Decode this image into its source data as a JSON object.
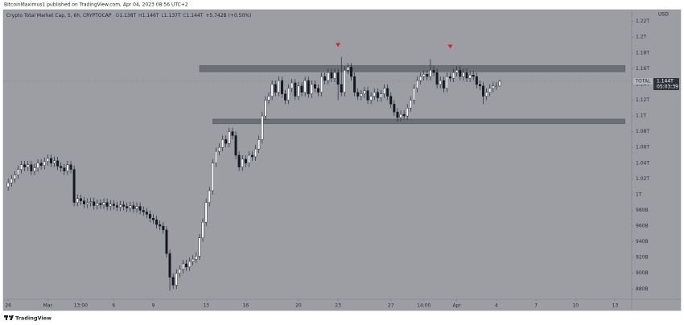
{
  "header": {
    "published": "BitcoinMaximus1 published on TradingView.com, Apr 04, 2023 08:56 UTC+2"
  },
  "footer": {
    "brand": "TradingView"
  },
  "chart_data": {
    "type": "candlestick",
    "title": "Crypto Total Market Cap, 5, 6h, CRYPTOCAP",
    "ohlc_legend": [
      {
        "key": "O",
        "value": "1.138T"
      },
      {
        "key": "H",
        "value": "1.146T"
      },
      {
        "key": "L",
        "value": "1.137T"
      },
      {
        "key": "C",
        "value": "1.144T"
      }
    ],
    "change": "+5.742B (+0.50%)",
    "currency": "USD",
    "symbol_tag": "TOTAL",
    "last_price": {
      "value": 1144,
      "label": "1.144T"
    },
    "countdown": "05:03:39",
    "up_color": "#ffffff",
    "down_color": "#131722",
    "xlim": [
      -1.5,
      189
    ],
    "xticks": [
      {
        "value": 0,
        "label": "26"
      },
      {
        "value": 12,
        "label": "Mar"
      },
      {
        "value": 22,
        "label": "13:00"
      },
      {
        "value": 32,
        "label": "6"
      },
      {
        "value": 44,
        "label": "9"
      },
      {
        "value": 60,
        "label": "13"
      },
      {
        "value": 72,
        "label": "16"
      },
      {
        "value": 88,
        "label": "20"
      },
      {
        "value": 100,
        "label": "23"
      },
      {
        "value": 116,
        "label": "27"
      },
      {
        "value": 126,
        "label": "14:00"
      },
      {
        "value": 136,
        "label": "Apr"
      },
      {
        "value": 148,
        "label": "4"
      },
      {
        "value": 160,
        "label": "7"
      },
      {
        "value": 172,
        "label": "10"
      },
      {
        "value": 184,
        "label": "13"
      }
    ],
    "ylim": [
      867,
      1235
    ],
    "yticks": [
      {
        "value": 880,
        "label": "880B"
      },
      {
        "value": 900,
        "label": "900B"
      },
      {
        "value": 920,
        "label": "920B"
      },
      {
        "value": 940,
        "label": "940B"
      },
      {
        "value": 960,
        "label": "960B"
      },
      {
        "value": 980,
        "label": "980B"
      },
      {
        "value": 1000,
        "label": "1T"
      },
      {
        "value": 1020,
        "label": "1.02T"
      },
      {
        "value": 1040,
        "label": "1.04T"
      },
      {
        "value": 1060,
        "label": "1.06T"
      },
      {
        "value": 1080,
        "label": "1.08T"
      },
      {
        "value": 1100,
        "label": "1.1T"
      },
      {
        "value": 1120,
        "label": "1.12T"
      },
      {
        "value": 1140,
        "label": "1.14T"
      },
      {
        "value": 1160,
        "label": "1.16T"
      },
      {
        "value": 1180,
        "label": "1.18T"
      },
      {
        "value": 1200,
        "label": "1.2T"
      },
      {
        "value": 1220,
        "label": "1.22T"
      }
    ],
    "zones": [
      {
        "x": [
          58,
          187
        ],
        "y": [
          1156,
          1164
        ]
      },
      {
        "x": [
          62,
          187
        ],
        "y": [
          1090,
          1096
        ]
      }
    ],
    "markers": [
      {
        "x": 100,
        "y": 1190,
        "color": "#e0201c"
      },
      {
        "x": 134,
        "y": 1188,
        "color": "#e0201c"
      }
    ],
    "open": [
      1010,
      1015,
      1020,
      1025,
      1032,
      1038,
      1035,
      1038,
      1030,
      1034,
      1040,
      1037,
      1042,
      1046,
      1040,
      1043,
      1036,
      1034,
      1030,
      1038,
      1032,
      990,
      995,
      992,
      988,
      990,
      991,
      986,
      989,
      987,
      990,
      985,
      988,
      986,
      984,
      987,
      985,
      983,
      986,
      982,
      985,
      980,
      978,
      975,
      970,
      968,
      962,
      960,
      955,
      925,
      895,
      885,
      900,
      905,
      912,
      908,
      915,
      918,
      922,
      945,
      965,
      990,
      1005,
      1040,
      1055,
      1060,
      1070,
      1065,
      1080,
      1075,
      1050,
      1035,
      1045,
      1040,
      1050,
      1048,
      1058,
      1070,
      1100,
      1120,
      1125,
      1140,
      1130,
      1145,
      1128,
      1120,
      1135,
      1142,
      1125,
      1138,
      1130,
      1145,
      1128,
      1140,
      1135,
      1130,
      1150,
      1145,
      1155,
      1148,
      1155,
      1140,
      1130,
      1158,
      1162,
      1150,
      1130,
      1125,
      1128,
      1132,
      1120,
      1125,
      1130,
      1123,
      1128,
      1135,
      1125,
      1115,
      1105,
      1098,
      1102,
      1100,
      1110,
      1120,
      1135,
      1145,
      1150,
      1153,
      1150,
      1158,
      1155,
      1140,
      1145,
      1135,
      1150,
      1148,
      1155,
      1158,
      1150,
      1155,
      1148,
      1152,
      1150,
      1140,
      1138,
      1125,
      1130,
      1135,
      1138,
      1138
    ],
    "high": [
      1020,
      1025,
      1030,
      1037,
      1043,
      1043,
      1043,
      1043,
      1039,
      1045,
      1045,
      1047,
      1051,
      1051,
      1048,
      1048,
      1041,
      1039,
      1043,
      1043,
      1037,
      1000,
      1000,
      997,
      995,
      996,
      996,
      994,
      994,
      995,
      995,
      993,
      993,
      991,
      992,
      992,
      990,
      991,
      991,
      990,
      990,
      985,
      983,
      980,
      975,
      973,
      967,
      965,
      960,
      930,
      900,
      905,
      910,
      917,
      917,
      920,
      923,
      927,
      950,
      970,
      995,
      1010,
      1045,
      1060,
      1065,
      1075,
      1075,
      1085,
      1085,
      1080,
      1055,
      1050,
      1050,
      1055,
      1055,
      1063,
      1075,
      1105,
      1125,
      1130,
      1145,
      1145,
      1150,
      1150,
      1133,
      1140,
      1147,
      1147,
      1143,
      1143,
      1150,
      1150,
      1145,
      1145,
      1140,
      1155,
      1155,
      1160,
      1160,
      1160,
      1160,
      1175,
      1163,
      1167,
      1167,
      1155,
      1135,
      1133,
      1137,
      1137,
      1130,
      1135,
      1135,
      1133,
      1140,
      1140,
      1130,
      1120,
      1110,
      1107,
      1107,
      1115,
      1125,
      1140,
      1150,
      1155,
      1158,
      1158,
      1172,
      1163,
      1160,
      1150,
      1150,
      1155,
      1155,
      1160,
      1163,
      1163,
      1160,
      1160,
      1157,
      1157,
      1155,
      1145,
      1143,
      1135,
      1140,
      1143,
      1143,
      1146
    ],
    "low": [
      1005,
      1010,
      1015,
      1020,
      1027,
      1030,
      1030,
      1025,
      1025,
      1029,
      1032,
      1032,
      1037,
      1035,
      1035,
      1031,
      1029,
      1025,
      1025,
      1027,
      985,
      985,
      987,
      983,
      983,
      985,
      981,
      981,
      982,
      982,
      980,
      980,
      981,
      979,
      979,
      980,
      978,
      978,
      977,
      977,
      975,
      973,
      970,
      965,
      963,
      957,
      955,
      950,
      920,
      878,
      880,
      880,
      895,
      900,
      903,
      903,
      910,
      913,
      917,
      940,
      960,
      985,
      1000,
      1035,
      1050,
      1055,
      1060,
      1060,
      1070,
      1045,
      1030,
      1030,
      1035,
      1035,
      1043,
      1043,
      1053,
      1065,
      1095,
      1115,
      1120,
      1125,
      1125,
      1123,
      1115,
      1115,
      1130,
      1120,
      1120,
      1125,
      1125,
      1123,
      1123,
      1130,
      1125,
      1125,
      1140,
      1140,
      1143,
      1143,
      1120,
      1125,
      1125,
      1153,
      1145,
      1125,
      1120,
      1120,
      1123,
      1115,
      1115,
      1120,
      1118,
      1118,
      1123,
      1120,
      1110,
      1100,
      1093,
      1093,
      1095,
      1095,
      1105,
      1115,
      1130,
      1140,
      1145,
      1145,
      1145,
      1150,
      1135,
      1135,
      1130,
      1130,
      1143,
      1143,
      1150,
      1145,
      1145,
      1143,
      1143,
      1145,
      1135,
      1133,
      1115,
      1120,
      1125,
      1130,
      1133,
      1137
    ],
    "close": [
      1015,
      1020,
      1025,
      1032,
      1038,
      1035,
      1038,
      1030,
      1034,
      1040,
      1037,
      1042,
      1046,
      1040,
      1043,
      1036,
      1034,
      1030,
      1038,
      1032,
      990,
      995,
      992,
      988,
      990,
      991,
      986,
      989,
      987,
      990,
      985,
      988,
      986,
      984,
      987,
      985,
      983,
      986,
      982,
      985,
      980,
      978,
      975,
      970,
      968,
      962,
      960,
      955,
      925,
      895,
      885,
      900,
      905,
      912,
      908,
      915,
      918,
      922,
      945,
      965,
      990,
      1005,
      1040,
      1055,
      1060,
      1070,
      1065,
      1080,
      1075,
      1050,
      1035,
      1045,
      1040,
      1050,
      1048,
      1058,
      1070,
      1100,
      1120,
      1125,
      1140,
      1130,
      1145,
      1128,
      1120,
      1135,
      1142,
      1125,
      1138,
      1130,
      1145,
      1128,
      1140,
      1135,
      1130,
      1150,
      1145,
      1155,
      1148,
      1155,
      1140,
      1130,
      1158,
      1162,
      1150,
      1130,
      1125,
      1128,
      1132,
      1120,
      1125,
      1130,
      1123,
      1128,
      1135,
      1125,
      1115,
      1105,
      1098,
      1102,
      1100,
      1110,
      1120,
      1135,
      1145,
      1150,
      1153,
      1150,
      1158,
      1155,
      1140,
      1145,
      1135,
      1150,
      1148,
      1155,
      1158,
      1150,
      1155,
      1148,
      1152,
      1150,
      1140,
      1138,
      1125,
      1130,
      1135,
      1138,
      1138,
      1144
    ]
  }
}
